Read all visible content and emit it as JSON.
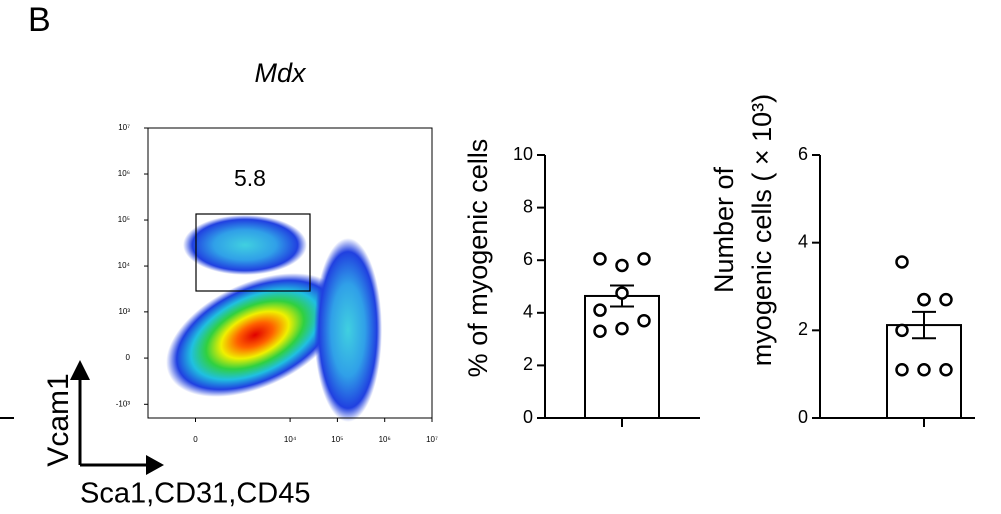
{
  "panel_label": "B",
  "chart_data": [
    {
      "type": "flow",
      "title": "Mdx",
      "annotation": "5.8",
      "xlabel": "Sca1,CD31,CD45",
      "ylabel": "Vcam1",
      "xscale": "biexponential",
      "yscale": "biexponential",
      "xlim": [
        -1000,
        10000000
      ],
      "ylim": [
        -2000,
        10000000
      ],
      "xticks": [
        0,
        {
          "value": 10000,
          "label": "10⁴"
        },
        {
          "value": 100000,
          "label": "10⁵"
        },
        {
          "value": 1000000,
          "label": "10⁶"
        },
        {
          "value": 10000000,
          "label": "10⁷"
        }
      ],
      "yticks": [
        {
          "value": -1000,
          "label": "-10³"
        },
        0,
        {
          "value": 1000,
          "label": "10³"
        },
        {
          "value": 10000,
          "label": "10⁴"
        },
        {
          "value": 100000,
          "label": "10⁵"
        },
        {
          "value": 1000000,
          "label": "10⁶"
        },
        {
          "value": 10000000,
          "label": "10⁷"
        }
      ]
    },
    {
      "type": "bar",
      "ylabel": [
        "% of myogenic cells"
      ],
      "values": [
        4.64
      ],
      "errors": [
        0.4
      ],
      "points": [
        [
          6.05,
          5.8,
          6.05,
          4.75,
          4.1,
          3.7,
          3.3,
          3.4
        ]
      ],
      "ylim": [
        0,
        10
      ],
      "yticks": [
        0,
        2,
        4,
        6,
        8,
        10
      ],
      "color": "#ffffff"
    },
    {
      "type": "bar",
      "ylabel": [
        "Number of",
        "myogenic cells ( × 10³)"
      ],
      "values": [
        2.12
      ],
      "errors": [
        0.3
      ],
      "points": [
        [
          3.56,
          2.7,
          2.7,
          2.7,
          2.0,
          1.1,
          1.1,
          1.1
        ]
      ],
      "ylim": [
        0,
        6
      ],
      "yticks": [
        0,
        2,
        4,
        6
      ],
      "color": "#ffffff"
    }
  ]
}
